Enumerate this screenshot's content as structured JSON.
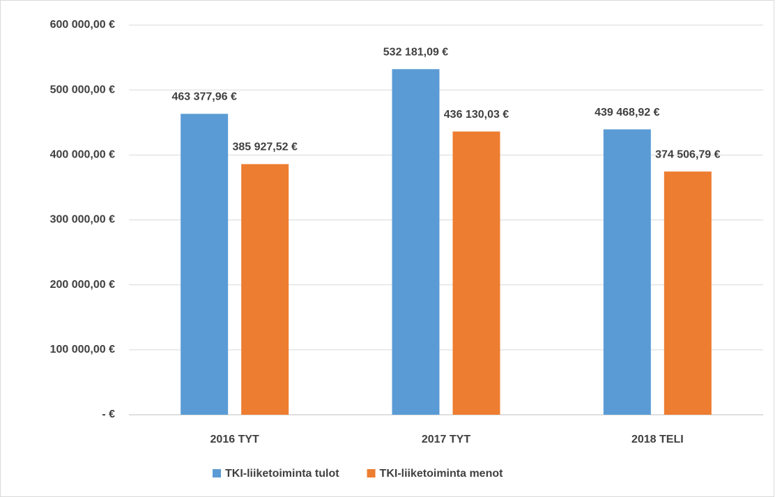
{
  "chart_data": {
    "type": "bar",
    "categories": [
      "2016 TYT",
      "2017 TYT",
      "2018 TELI"
    ],
    "series": [
      {
        "name": "TKI-liiketoiminta tulot",
        "color": "#5b9bd5",
        "values": [
          463377.96,
          532181.09,
          439468.92
        ],
        "value_labels": [
          "463 377,96 €",
          "532 181,09 €",
          "439 468,92 €"
        ]
      },
      {
        "name": "TKI-liiketoiminta menot",
        "color": "#ed7d31",
        "values": [
          385927.52,
          436130.03,
          374506.79
        ],
        "value_labels": [
          "385 927,52 €",
          "436 130,03 €",
          "374 506,79 €"
        ]
      }
    ],
    "ylim": [
      0,
      600000
    ],
    "yticks": [
      {
        "value": 0,
        "label": "-  €"
      },
      {
        "value": 100000,
        "label": "100 000,00 €"
      },
      {
        "value": 200000,
        "label": "200 000,00 €"
      },
      {
        "value": 300000,
        "label": "300 000,00 €"
      },
      {
        "value": 400000,
        "label": "400 000,00 €"
      },
      {
        "value": 500000,
        "label": "500 000,00 €"
      },
      {
        "value": 600000,
        "label": "600 000,00 €"
      }
    ],
    "grid": true,
    "legend": "bottom"
  }
}
